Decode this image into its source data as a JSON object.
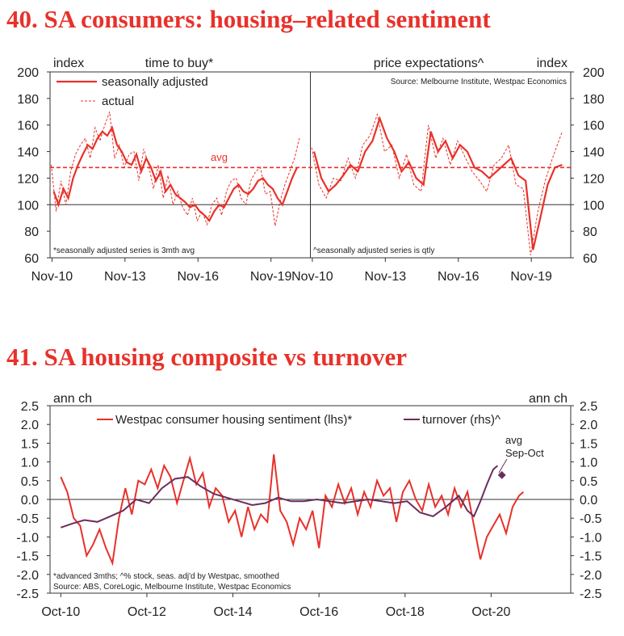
{
  "chart_data": [
    {
      "type": "line",
      "title": "40. SA consumers: housing–related sentiment",
      "ylim": [
        60,
        200
      ],
      "yticks": [
        60,
        80,
        100,
        120,
        140,
        160,
        180,
        200
      ],
      "y_unit_left": "index",
      "y_unit_right": "index",
      "xtick_labels": [
        "Nov-10",
        "Nov-13",
        "Nov-16",
        "Nov-19"
      ],
      "xtick_years": [
        2010.83,
        2013.83,
        2016.83,
        2019.83
      ],
      "avg_value": 128,
      "avg_label": "avg",
      "source": "Source: Melbourne Institute, Westpac Economics",
      "legend": {
        "sa_label": "seasonally adjusted",
        "actual_label": "actual"
      },
      "panels": [
        {
          "name": "time to buy*",
          "note": "*seasonally adjusted series is 3mth avg",
          "series": [
            {
              "name": "seasonally adjusted",
              "style": "solid",
              "x": [
                2010.9,
                2011.1,
                2011.3,
                2011.5,
                2011.7,
                2011.9,
                2012.1,
                2012.3,
                2012.5,
                2012.7,
                2012.9,
                2013.1,
                2013.3,
                2013.5,
                2013.7,
                2013.9,
                2014.1,
                2014.3,
                2014.5,
                2014.7,
                2014.9,
                2015.1,
                2015.3,
                2015.5,
                2015.7,
                2015.9,
                2016.1,
                2016.3,
                2016.5,
                2016.7,
                2016.9,
                2017.1,
                2017.3,
                2017.5,
                2017.7,
                2017.9,
                2018.1,
                2018.3,
                2018.5,
                2018.7,
                2018.9,
                2019.1,
                2019.3,
                2019.5,
                2019.7,
                2019.9,
                2020.1,
                2020.3,
                2020.5,
                2020.7,
                2020.9
              ],
              "y": [
                110,
                100,
                112,
                105,
                120,
                130,
                138,
                145,
                142,
                150,
                155,
                152,
                158,
                145,
                140,
                132,
                130,
                138,
                125,
                135,
                128,
                118,
                125,
                110,
                115,
                108,
                105,
                102,
                98,
                100,
                95,
                92,
                88,
                95,
                100,
                98,
                105,
                112,
                115,
                110,
                108,
                112,
                118,
                120,
                115,
                112,
                105,
                100,
                110,
                120,
                128
              ]
            },
            {
              "name": "actual",
              "style": "dashed",
              "x": [
                2010.8,
                2011.0,
                2011.2,
                2011.4,
                2011.6,
                2011.8,
                2012.0,
                2012.2,
                2012.4,
                2012.6,
                2012.8,
                2013.0,
                2013.2,
                2013.4,
                2013.6,
                2013.8,
                2014.0,
                2014.2,
                2014.4,
                2014.6,
                2014.8,
                2015.0,
                2015.2,
                2015.4,
                2015.6,
                2015.8,
                2016.0,
                2016.2,
                2016.4,
                2016.6,
                2016.8,
                2017.0,
                2017.2,
                2017.4,
                2017.6,
                2017.8,
                2018.0,
                2018.2,
                2018.4,
                2018.6,
                2018.8,
                2019.0,
                2019.2,
                2019.4,
                2019.6,
                2019.8,
                2020.0,
                2020.2,
                2020.4,
                2020.6,
                2020.8,
                2021.0
              ],
              "y": [
                130,
                95,
                118,
                100,
                125,
                138,
                145,
                150,
                135,
                158,
                148,
                160,
                170,
                135,
                145,
                128,
                138,
                140,
                118,
                142,
                130,
                112,
                130,
                105,
                122,
                100,
                110,
                98,
                92,
                105,
                88,
                95,
                85,
                100,
                105,
                92,
                110,
                118,
                120,
                105,
                100,
                118,
                125,
                128,
                108,
                110,
                84,
                102,
                115,
                125,
                135,
                150
              ]
            }
          ]
        },
        {
          "name": "price expectations^",
          "note": "^seasonally adjusted series is qtly",
          "series": [
            {
              "name": "seasonally adjusted",
              "style": "solid",
              "x": [
                2010.9,
                2011.2,
                2011.5,
                2011.8,
                2012.1,
                2012.4,
                2012.7,
                2013.0,
                2013.3,
                2013.6,
                2013.9,
                2014.2,
                2014.5,
                2014.8,
                2015.1,
                2015.4,
                2015.7,
                2016.0,
                2016.3,
                2016.6,
                2016.9,
                2017.2,
                2017.5,
                2017.8,
                2018.1,
                2018.4,
                2018.7,
                2019.0,
                2019.3,
                2019.6,
                2019.9,
                2020.2,
                2020.5,
                2020.8,
                2021.1
              ],
              "y": [
                140,
                120,
                110,
                115,
                122,
                130,
                125,
                140,
                148,
                165,
                150,
                140,
                125,
                132,
                120,
                115,
                155,
                140,
                148,
                135,
                145,
                140,
                128,
                125,
                120,
                125,
                130,
                135,
                122,
                118,
                66,
                90,
                115,
                128,
                130
              ]
            },
            {
              "name": "actual",
              "style": "dashed",
              "x": [
                2010.8,
                2011.1,
                2011.4,
                2011.7,
                2012.0,
                2012.3,
                2012.6,
                2012.9,
                2013.2,
                2013.5,
                2013.8,
                2014.1,
                2014.4,
                2014.7,
                2015.0,
                2015.3,
                2015.6,
                2015.9,
                2016.2,
                2016.5,
                2016.8,
                2017.1,
                2017.4,
                2017.7,
                2018.0,
                2018.3,
                2018.6,
                2018.9,
                2019.2,
                2019.5,
                2019.8,
                2020.1,
                2020.4,
                2020.7,
                2021.0,
                2021.1
              ],
              "y": [
                143,
                115,
                105,
                120,
                118,
                135,
                120,
                145,
                152,
                168,
                140,
                145,
                120,
                138,
                115,
                110,
                160,
                135,
                150,
                130,
                148,
                136,
                125,
                118,
                110,
                130,
                135,
                145,
                115,
                112,
                62,
                95,
                118,
                135,
                150,
                155
              ]
            }
          ]
        }
      ]
    },
    {
      "type": "line",
      "title": "41. SA housing composite vs turnover",
      "ylim": [
        -2.5,
        2.5
      ],
      "yticks": [
        -2.5,
        -2.0,
        -1.5,
        -1.0,
        -0.5,
        0.0,
        0.5,
        1.0,
        1.5,
        2.0,
        2.5
      ],
      "ytick_labels": [
        "-2.5",
        "-2.0",
        "-1.5",
        "-1.0",
        "-0.5",
        "0.0",
        "0.5",
        "1.0",
        "1.5",
        "2.0",
        "2.5"
      ],
      "y_unit_left": "ann ch",
      "y_unit_right": "ann ch",
      "xtick_labels": [
        "Oct-10",
        "Oct-12",
        "Oct-14",
        "Oct-16",
        "Oct-18",
        "Oct-20"
      ],
      "xtick_years": [
        2010.75,
        2012.75,
        2014.75,
        2016.75,
        2018.75,
        2020.75
      ],
      "legend": {
        "sentiment_label": "Westpac consumer housing sentiment (lhs)*",
        "turnover_label": "turnover (rhs)^"
      },
      "annotation": {
        "lines": [
          "avg",
          "Sep-Oct"
        ],
        "x": 2021.0,
        "y": 0.65
      },
      "notes": [
        "*advanced 3mths; ^% stock, seas. adj'd by Westpac, smoothed",
        "Source: ABS, CoreLogic, Melbourne Institute, Westpac Economics"
      ],
      "series": [
        {
          "name": "Westpac consumer housing sentiment (lhs)*",
          "color": "#e8312a",
          "x": [
            2010.75,
            2010.9,
            2011.05,
            2011.2,
            2011.35,
            2011.5,
            2011.65,
            2011.8,
            2011.95,
            2012.1,
            2012.25,
            2012.4,
            2012.55,
            2012.7,
            2012.85,
            2013.0,
            2013.15,
            2013.3,
            2013.45,
            2013.6,
            2013.75,
            2013.9,
            2014.05,
            2014.2,
            2014.35,
            2014.5,
            2014.65,
            2014.8,
            2014.95,
            2015.1,
            2015.25,
            2015.4,
            2015.55,
            2015.7,
            2015.85,
            2016.0,
            2016.15,
            2016.3,
            2016.45,
            2016.6,
            2016.75,
            2016.9,
            2017.05,
            2017.2,
            2017.35,
            2017.5,
            2017.65,
            2017.8,
            2017.95,
            2018.1,
            2018.25,
            2018.4,
            2018.55,
            2018.7,
            2018.85,
            2019.0,
            2019.15,
            2019.3,
            2019.45,
            2019.6,
            2019.75,
            2019.9,
            2020.05,
            2020.2,
            2020.35,
            2020.5,
            2020.65,
            2020.8,
            2020.95,
            2021.1,
            2021.25,
            2021.4,
            2021.5
          ],
          "y": [
            0.6,
            0.2,
            -0.5,
            -0.7,
            -1.5,
            -1.2,
            -0.8,
            -1.3,
            -1.7,
            -0.5,
            0.3,
            -0.4,
            0.5,
            0.4,
            0.8,
            0.3,
            0.9,
            0.6,
            -0.1,
            0.5,
            1.1,
            0.4,
            0.7,
            -0.2,
            0.3,
            0.1,
            -0.6,
            -0.3,
            -1.0,
            -0.2,
            -0.8,
            -0.4,
            -0.6,
            1.2,
            -0.3,
            -0.6,
            -1.2,
            -0.5,
            -0.8,
            -0.3,
            -1.3,
            0.1,
            -0.2,
            0.4,
            -0.1,
            0.3,
            -0.4,
            0.2,
            -0.2,
            0.5,
            0.1,
            0.3,
            -0.6,
            0.2,
            0.5,
            0.0,
            -0.3,
            0.4,
            -0.2,
            0.1,
            -0.4,
            0.3,
            -0.2,
            0.2,
            -0.7,
            -1.6,
            -1.0,
            -0.7,
            -0.4,
            -0.9,
            -0.2,
            0.1,
            0.2
          ]
        },
        {
          "name": "turnover (rhs)^",
          "color": "#6b2d5c",
          "x": [
            2010.75,
            2011.0,
            2011.3,
            2011.6,
            2011.9,
            2012.2,
            2012.5,
            2012.8,
            2013.1,
            2013.4,
            2013.7,
            2014.0,
            2014.3,
            2014.6,
            2014.9,
            2015.2,
            2015.5,
            2015.8,
            2016.1,
            2016.4,
            2016.7,
            2017.0,
            2017.3,
            2017.6,
            2017.9,
            2018.2,
            2018.5,
            2018.8,
            2019.1,
            2019.4,
            2019.7,
            2020.0,
            2020.2,
            2020.35,
            2020.5,
            2020.65,
            2020.8,
            2020.9
          ],
          "y": [
            -0.75,
            -0.65,
            -0.55,
            -0.6,
            -0.45,
            -0.3,
            0.0,
            -0.1,
            0.3,
            0.55,
            0.6,
            0.35,
            0.15,
            0.05,
            -0.05,
            -0.15,
            -0.1,
            0.05,
            -0.05,
            -0.05,
            0.0,
            -0.05,
            -0.1,
            -0.05,
            0.0,
            -0.05,
            -0.1,
            -0.05,
            -0.35,
            -0.45,
            -0.2,
            0.1,
            -0.3,
            -0.45,
            -0.05,
            0.4,
            0.8,
            0.9
          ]
        }
      ]
    }
  ]
}
